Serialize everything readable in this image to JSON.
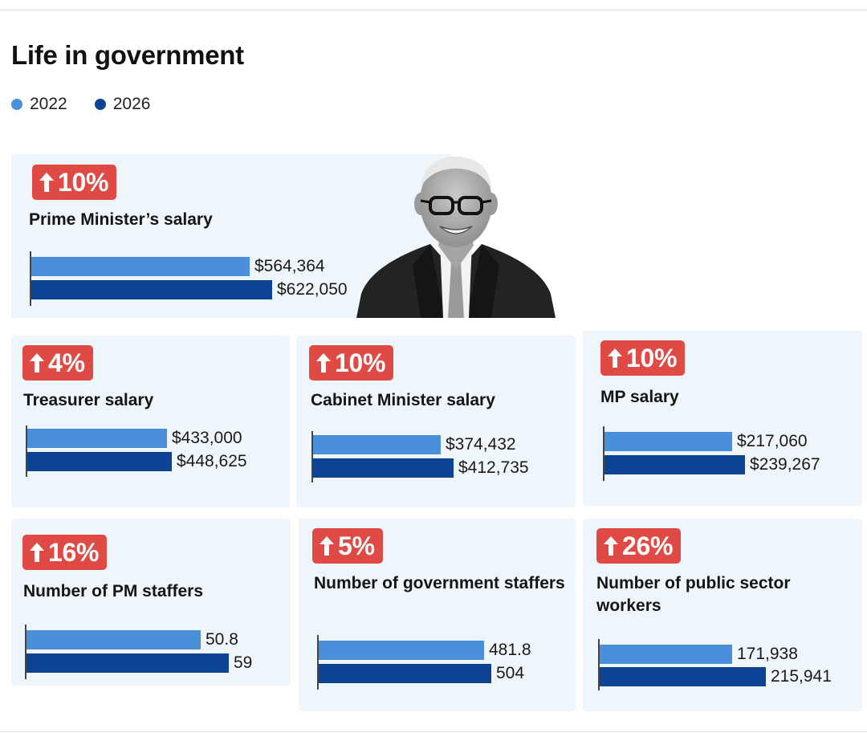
{
  "title": "Life in government",
  "legend": [
    {
      "label": "2022",
      "color": "#4a8fd9"
    },
    {
      "label": "2026",
      "color": "#0d4394"
    }
  ],
  "colors": {
    "bar_2022": "#4a8fd9",
    "bar_2026": "#0d4394",
    "badge": "#df4a45",
    "panel": "#eff6fb"
  },
  "chart_data": [
    {
      "type": "bar",
      "id": "pm-salary",
      "title": "Prime Minister’s salary",
      "change": "10%",
      "categories": [
        "2022",
        "2026"
      ],
      "values": [
        564364,
        622050
      ],
      "labels": [
        "$564,364",
        "$622,050"
      ]
    },
    {
      "type": "bar",
      "id": "treasurer-salary",
      "title": "Treasurer salary",
      "change": "4%",
      "categories": [
        "2022",
        "2026"
      ],
      "values": [
        433000,
        448625
      ],
      "labels": [
        "$433,000",
        "$448,625"
      ]
    },
    {
      "type": "bar",
      "id": "cabinet-salary",
      "title": "Cabinet Minister salary",
      "change": "10%",
      "categories": [
        "2022",
        "2026"
      ],
      "values": [
        374432,
        412735
      ],
      "labels": [
        "$374,432",
        "$412,735"
      ]
    },
    {
      "type": "bar",
      "id": "mp-salary",
      "title": "MP salary",
      "change": "10%",
      "categories": [
        "2022",
        "2026"
      ],
      "values": [
        217060,
        239267
      ],
      "labels": [
        "$217,060",
        "$239,267"
      ]
    },
    {
      "type": "bar",
      "id": "pm-staffers",
      "title": "Number of PM staffers",
      "change": "16%",
      "categories": [
        "2022",
        "2026"
      ],
      "values": [
        50.8,
        59
      ],
      "labels": [
        "50.8",
        "59"
      ]
    },
    {
      "type": "bar",
      "id": "gov-staffers",
      "title": "Number of government staffers",
      "change": "5%",
      "categories": [
        "2022",
        "2026"
      ],
      "values": [
        481.8,
        504
      ],
      "labels": [
        "481.8",
        "504"
      ]
    },
    {
      "type": "bar",
      "id": "public-sector",
      "title": "Number of public sector workers",
      "change": "26%",
      "categories": [
        "2022",
        "2026"
      ],
      "values": [
        171938,
        215941
      ],
      "labels": [
        "171,938",
        "215,941"
      ]
    }
  ]
}
